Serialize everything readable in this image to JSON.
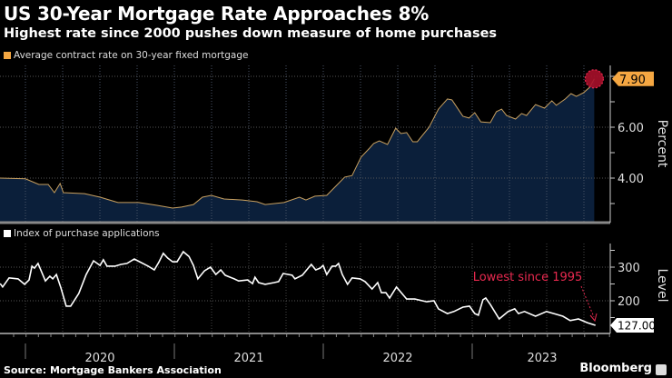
{
  "header": {
    "title": "US 30-Year Mortgage Rate Approaches 8%",
    "subtitle": "Highest rate since 2000 pushes down measure of home purchases"
  },
  "footer": {
    "source": "Source: Mortgage Bankers Association",
    "brand": "Bloomberg"
  },
  "colors": {
    "background": "#000000",
    "rate_line": "#c8a060",
    "rate_area": "#0b1f3a",
    "rate_legend": "#f5a742",
    "index_line": "#ffffff",
    "highlight": "#c8102e",
    "annotation": "#e8294f"
  },
  "chart_data": [
    {
      "type": "area",
      "legend": "Average contract rate on 30-year fixed mortgage",
      "legend_placement": "top-left",
      "ylabel": "Percent",
      "yticks": [
        "4.00",
        "6.00"
      ],
      "ylim": [
        2.3,
        8.4
      ],
      "grid": true,
      "last_value_label": "7.90",
      "series": [
        {
          "name": "Average contract rate on 30-year fixed mortgage",
          "points": [
            [
              "2019-10-30",
              4.0
            ],
            [
              "2020-01-01",
              3.97
            ],
            [
              "2020-02-03",
              3.75
            ],
            [
              "2020-02-26",
              3.75
            ],
            [
              "2020-03-12",
              3.43
            ],
            [
              "2020-03-26",
              3.79
            ],
            [
              "2020-04-03",
              3.43
            ],
            [
              "2020-05-25",
              3.39
            ],
            [
              "2020-07-02",
              3.25
            ],
            [
              "2020-08-15",
              3.04
            ],
            [
              "2020-10-05",
              3.04
            ],
            [
              "2020-11-19",
              2.93
            ],
            [
              "2020-12-27",
              2.82
            ],
            [
              "2021-01-18",
              2.86
            ],
            [
              "2021-02-16",
              2.96
            ],
            [
              "2021-03-10",
              3.25
            ],
            [
              "2021-04-01",
              3.32
            ],
            [
              "2021-05-02",
              3.18
            ],
            [
              "2021-06-16",
              3.14
            ],
            [
              "2021-07-22",
              3.07
            ],
            [
              "2021-08-11",
              2.96
            ],
            [
              "2021-09-26",
              3.04
            ],
            [
              "2021-11-03",
              3.25
            ],
            [
              "2021-11-19",
              3.14
            ],
            [
              "2021-12-11",
              3.29
            ],
            [
              "2022-01-09",
              3.32
            ],
            [
              "2022-01-31",
              3.68
            ],
            [
              "2022-02-22",
              4.04
            ],
            [
              "2022-03-12",
              4.1
            ],
            [
              "2022-04-03",
              4.82
            ],
            [
              "2022-04-24",
              5.18
            ],
            [
              "2022-05-04",
              5.36
            ],
            [
              "2022-05-18",
              5.46
            ],
            [
              "2022-06-07",
              5.32
            ],
            [
              "2022-06-27",
              5.96
            ],
            [
              "2022-07-10",
              5.75
            ],
            [
              "2022-07-24",
              5.79
            ],
            [
              "2022-08-08",
              5.43
            ],
            [
              "2022-08-19",
              5.43
            ],
            [
              "2022-09-17",
              6.0
            ],
            [
              "2022-10-10",
              6.71
            ],
            [
              "2022-11-01",
              7.11
            ],
            [
              "2022-11-12",
              7.07
            ],
            [
              "2022-12-09",
              6.43
            ],
            [
              "2022-12-24",
              6.36
            ],
            [
              "2023-01-07",
              6.57
            ],
            [
              "2023-01-22",
              6.21
            ],
            [
              "2023-02-14",
              6.18
            ],
            [
              "2023-03-01",
              6.61
            ],
            [
              "2023-03-14",
              6.71
            ],
            [
              "2023-03-26",
              6.46
            ],
            [
              "2023-04-17",
              6.32
            ],
            [
              "2023-05-02",
              6.54
            ],
            [
              "2023-05-14",
              6.46
            ],
            [
              "2023-06-05",
              6.89
            ],
            [
              "2023-06-27",
              6.75
            ],
            [
              "2023-07-15",
              7.04
            ],
            [
              "2023-07-26",
              6.86
            ],
            [
              "2023-08-17",
              7.11
            ],
            [
              "2023-08-31",
              7.32
            ],
            [
              "2023-09-13",
              7.21
            ],
            [
              "2023-10-01",
              7.36
            ],
            [
              "2023-10-16",
              7.57
            ],
            [
              "2023-10-27",
              7.9
            ]
          ]
        }
      ]
    },
    {
      "type": "line",
      "legend": "Index of purchase applications",
      "legend_placement": "top-left",
      "ylabel": "Level",
      "yticks": [
        "200",
        "300"
      ],
      "ylim": [
        103,
        370
      ],
      "grid": true,
      "last_value_label": "127.00",
      "annotation": "Lowest since 1995",
      "xticks": [
        "2020",
        "2021",
        "2022",
        "2023"
      ],
      "series": [
        {
          "name": "Index of purchase applications",
          "points": [
            [
              "2019-10-31",
              251
            ],
            [
              "2019-11-06",
              241
            ],
            [
              "2019-11-22",
              268
            ],
            [
              "2019-12-14",
              265
            ],
            [
              "2019-12-30",
              249
            ],
            [
              "2020-01-10",
              262
            ],
            [
              "2020-01-17",
              303
            ],
            [
              "2020-01-23",
              297
            ],
            [
              "2020-02-01",
              311
            ],
            [
              "2020-02-19",
              259
            ],
            [
              "2020-03-01",
              273
            ],
            [
              "2020-03-08",
              265
            ],
            [
              "2020-03-17",
              278
            ],
            [
              "2020-03-28",
              238
            ],
            [
              "2020-04-10",
              184
            ],
            [
              "2020-04-21",
              184
            ],
            [
              "2020-05-11",
              222
            ],
            [
              "2020-05-29",
              278
            ],
            [
              "2020-06-16",
              319
            ],
            [
              "2020-07-02",
              305
            ],
            [
              "2020-07-10",
              322
            ],
            [
              "2020-07-19",
              303
            ],
            [
              "2020-08-08",
              303
            ],
            [
              "2020-08-22",
              308
            ],
            [
              "2020-09-06",
              311
            ],
            [
              "2020-09-24",
              324
            ],
            [
              "2020-10-28",
              303
            ],
            [
              "2020-11-12",
              292
            ],
            [
              "2020-11-23",
              314
            ],
            [
              "2020-12-04",
              341
            ],
            [
              "2020-12-15",
              327
            ],
            [
              "2020-12-27",
              316
            ],
            [
              "2021-01-07",
              316
            ],
            [
              "2021-01-22",
              346
            ],
            [
              "2021-02-05",
              332
            ],
            [
              "2021-02-16",
              305
            ],
            [
              "2021-02-27",
              265
            ],
            [
              "2021-03-15",
              289
            ],
            [
              "2021-03-30",
              300
            ],
            [
              "2021-04-12",
              278
            ],
            [
              "2021-04-24",
              292
            ],
            [
              "2021-05-05",
              276
            ],
            [
              "2021-05-27",
              265
            ],
            [
              "2021-06-07",
              259
            ],
            [
              "2021-06-29",
              262
            ],
            [
              "2021-07-11",
              251
            ],
            [
              "2021-07-17",
              270
            ],
            [
              "2021-07-26",
              254
            ],
            [
              "2021-08-11",
              249
            ],
            [
              "2021-09-02",
              254
            ],
            [
              "2021-09-13",
              257
            ],
            [
              "2021-09-24",
              281
            ],
            [
              "2021-10-16",
              276
            ],
            [
              "2021-10-23",
              265
            ],
            [
              "2021-11-10",
              276
            ],
            [
              "2021-12-02",
              308
            ],
            [
              "2021-12-13",
              292
            ],
            [
              "2021-12-24",
              297
            ],
            [
              "2021-12-31",
              305
            ],
            [
              "2022-01-09",
              278
            ],
            [
              "2022-01-22",
              303
            ],
            [
              "2022-01-31",
              303
            ],
            [
              "2022-02-07",
              311
            ],
            [
              "2022-02-16",
              278
            ],
            [
              "2022-03-01",
              249
            ],
            [
              "2022-03-12",
              268
            ],
            [
              "2022-04-01",
              265
            ],
            [
              "2022-04-13",
              257
            ],
            [
              "2022-04-30",
              235
            ],
            [
              "2022-05-14",
              254
            ],
            [
              "2022-05-23",
              224
            ],
            [
              "2022-06-03",
              224
            ],
            [
              "2022-06-12",
              208
            ],
            [
              "2022-06-29",
              241
            ],
            [
              "2022-07-24",
              205
            ],
            [
              "2022-08-13",
              205
            ],
            [
              "2022-09-11",
              197
            ],
            [
              "2022-09-29",
              200
            ],
            [
              "2022-10-10",
              176
            ],
            [
              "2022-11-01",
              162
            ],
            [
              "2022-11-17",
              168
            ],
            [
              "2022-12-09",
              181
            ],
            [
              "2022-12-25",
              184
            ],
            [
              "2023-01-07",
              162
            ],
            [
              "2023-01-16",
              157
            ],
            [
              "2023-01-27",
              203
            ],
            [
              "2023-02-03",
              208
            ],
            [
              "2023-02-14",
              189
            ],
            [
              "2023-03-08",
              146
            ],
            [
              "2023-03-30",
              168
            ],
            [
              "2023-04-15",
              176
            ],
            [
              "2023-04-24",
              162
            ],
            [
              "2023-05-09",
              168
            ],
            [
              "2023-06-05",
              154
            ],
            [
              "2023-07-02",
              168
            ],
            [
              "2023-07-20",
              162
            ],
            [
              "2023-08-11",
              154
            ],
            [
              "2023-08-29",
              141
            ],
            [
              "2023-09-18",
              146
            ],
            [
              "2023-10-10",
              135
            ],
            [
              "2023-10-30",
              127
            ]
          ]
        }
      ]
    }
  ]
}
